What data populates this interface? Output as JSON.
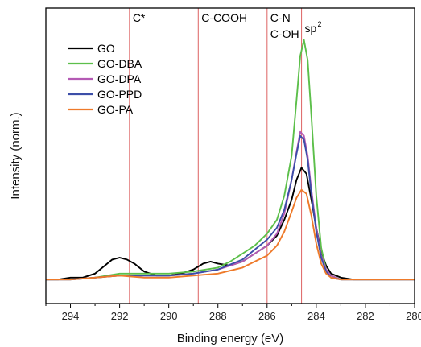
{
  "chart_data": {
    "type": "line",
    "title": "",
    "xlabel": "Binding energy (eV)",
    "ylabel": "Intensity (norm.)",
    "xlim": [
      295,
      280
    ],
    "x_reversed": true,
    "ylim": [
      -0.12,
      1.36
    ],
    "y_ticks_shown": false,
    "grid": false,
    "legend": "top-left",
    "x_ticks": [
      294,
      292,
      290,
      288,
      286,
      284,
      282,
      280
    ],
    "x_tick_labels": [
      "294",
      "292",
      "290",
      "288",
      "286",
      "284",
      "282",
      "280"
    ],
    "reference_lines": [
      {
        "x": 291.6,
        "label": "C*",
        "color": "#e07070"
      },
      {
        "x": 288.8,
        "label": "C-COOH",
        "color": "#e07070"
      },
      {
        "x": 286.0,
        "label": "C-N",
        "label2": "C-OH",
        "color": "#e07070"
      },
      {
        "x": 284.6,
        "label": "sp",
        "label_sup": "2",
        "color": "#e07070"
      }
    ],
    "series": [
      {
        "name": "GO",
        "color": "#000000",
        "points": [
          [
            295,
            0.0
          ],
          [
            294.5,
            0.0
          ],
          [
            294,
            0.01
          ],
          [
            293.5,
            0.01
          ],
          [
            293,
            0.03
          ],
          [
            292.6,
            0.07
          ],
          [
            292.3,
            0.1
          ],
          [
            292.0,
            0.11
          ],
          [
            291.7,
            0.1
          ],
          [
            291.4,
            0.08
          ],
          [
            291.0,
            0.04
          ],
          [
            290.5,
            0.02
          ],
          [
            290.0,
            0.02
          ],
          [
            289.5,
            0.03
          ],
          [
            289.0,
            0.05
          ],
          [
            288.6,
            0.08
          ],
          [
            288.3,
            0.09
          ],
          [
            288.0,
            0.08
          ],
          [
            287.5,
            0.07
          ],
          [
            287.0,
            0.09
          ],
          [
            286.5,
            0.13
          ],
          [
            286.0,
            0.17
          ],
          [
            285.6,
            0.22
          ],
          [
            285.3,
            0.3
          ],
          [
            285.0,
            0.4
          ],
          [
            284.8,
            0.5
          ],
          [
            284.6,
            0.56
          ],
          [
            284.4,
            0.53
          ],
          [
            284.2,
            0.4
          ],
          [
            284.0,
            0.26
          ],
          [
            283.8,
            0.14
          ],
          [
            283.6,
            0.07
          ],
          [
            283.4,
            0.03
          ],
          [
            283.0,
            0.01
          ],
          [
            282.5,
            0.0
          ],
          [
            282.0,
            0.0
          ],
          [
            281.0,
            0.0
          ],
          [
            280.0,
            0.0
          ]
        ]
      },
      {
        "name": "GO-DBA",
        "color": "#5cbf4a",
        "points": [
          [
            295,
            0.0
          ],
          [
            294.5,
            0.0
          ],
          [
            294,
            0.0
          ],
          [
            293,
            0.01
          ],
          [
            292,
            0.03
          ],
          [
            291,
            0.03
          ],
          [
            290,
            0.03
          ],
          [
            289,
            0.04
          ],
          [
            288.5,
            0.05
          ],
          [
            288,
            0.06
          ],
          [
            287.5,
            0.09
          ],
          [
            287,
            0.13
          ],
          [
            286.5,
            0.17
          ],
          [
            286,
            0.23
          ],
          [
            285.6,
            0.3
          ],
          [
            285.3,
            0.42
          ],
          [
            285.0,
            0.62
          ],
          [
            284.8,
            0.9
          ],
          [
            284.65,
            1.12
          ],
          [
            284.5,
            1.2
          ],
          [
            284.35,
            1.1
          ],
          [
            284.2,
            0.82
          ],
          [
            284.0,
            0.42
          ],
          [
            283.8,
            0.16
          ],
          [
            283.6,
            0.05
          ],
          [
            283.4,
            0.02
          ],
          [
            283,
            0.0
          ],
          [
            282,
            0.0
          ],
          [
            281,
            0.0
          ],
          [
            280,
            0.0
          ]
        ]
      },
      {
        "name": "GO-DPA",
        "color": "#b45ab4",
        "points": [
          [
            295,
            0.0
          ],
          [
            294,
            0.0
          ],
          [
            293,
            0.01
          ],
          [
            292,
            0.02
          ],
          [
            291,
            0.02
          ],
          [
            290,
            0.02
          ],
          [
            289,
            0.03
          ],
          [
            288,
            0.05
          ],
          [
            287,
            0.09
          ],
          [
            286.5,
            0.13
          ],
          [
            286,
            0.17
          ],
          [
            285.6,
            0.23
          ],
          [
            285.3,
            0.33
          ],
          [
            285.0,
            0.5
          ],
          [
            284.8,
            0.64
          ],
          [
            284.65,
            0.74
          ],
          [
            284.5,
            0.72
          ],
          [
            284.35,
            0.62
          ],
          [
            284.2,
            0.45
          ],
          [
            284.0,
            0.26
          ],
          [
            283.8,
            0.12
          ],
          [
            283.6,
            0.05
          ],
          [
            283.4,
            0.02
          ],
          [
            283,
            0.0
          ],
          [
            282,
            0.0
          ],
          [
            281,
            0.0
          ],
          [
            280,
            0.0
          ]
        ]
      },
      {
        "name": "GO-PPD",
        "color": "#3c4ea8",
        "points": [
          [
            295,
            0.0
          ],
          [
            294,
            0.0
          ],
          [
            293,
            0.01
          ],
          [
            292,
            0.02
          ],
          [
            291,
            0.02
          ],
          [
            290,
            0.02
          ],
          [
            289,
            0.03
          ],
          [
            288,
            0.05
          ],
          [
            287,
            0.1
          ],
          [
            286.5,
            0.15
          ],
          [
            286,
            0.2
          ],
          [
            285.6,
            0.26
          ],
          [
            285.3,
            0.35
          ],
          [
            285.0,
            0.5
          ],
          [
            284.8,
            0.63
          ],
          [
            284.65,
            0.72
          ],
          [
            284.5,
            0.7
          ],
          [
            284.35,
            0.6
          ],
          [
            284.2,
            0.43
          ],
          [
            284.0,
            0.24
          ],
          [
            283.8,
            0.11
          ],
          [
            283.6,
            0.04
          ],
          [
            283.4,
            0.01
          ],
          [
            283,
            0.0
          ],
          [
            282,
            0.0
          ],
          [
            281,
            0.0
          ],
          [
            280,
            0.0
          ]
        ]
      },
      {
        "name": "GO-PA",
        "color": "#ee7a2a",
        "points": [
          [
            295,
            0.0
          ],
          [
            294,
            0.0
          ],
          [
            293,
            0.01
          ],
          [
            292,
            0.02
          ],
          [
            291,
            0.01
          ],
          [
            290,
            0.01
          ],
          [
            289,
            0.02
          ],
          [
            288,
            0.03
          ],
          [
            287,
            0.06
          ],
          [
            286.5,
            0.09
          ],
          [
            286,
            0.12
          ],
          [
            285.6,
            0.17
          ],
          [
            285.3,
            0.24
          ],
          [
            285.0,
            0.34
          ],
          [
            284.8,
            0.41
          ],
          [
            284.6,
            0.45
          ],
          [
            284.4,
            0.43
          ],
          [
            284.2,
            0.32
          ],
          [
            284.0,
            0.18
          ],
          [
            283.8,
            0.08
          ],
          [
            283.6,
            0.03
          ],
          [
            283.4,
            0.01
          ],
          [
            283,
            0.0
          ],
          [
            282,
            0.0
          ],
          [
            281,
            0.0
          ],
          [
            280,
            0.0
          ]
        ]
      }
    ]
  }
}
